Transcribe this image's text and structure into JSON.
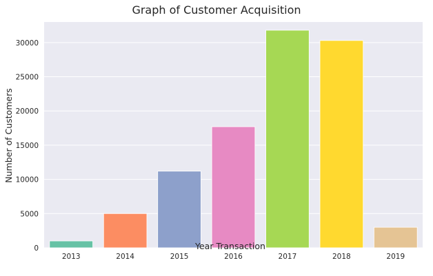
{
  "chart_data": {
    "type": "bar",
    "title": "Graph of Customer Acquisition",
    "xlabel": "Year Transaction",
    "ylabel": "Number of Customers",
    "categories": [
      "2013",
      "2014",
      "2015",
      "2016",
      "2017",
      "2018",
      "2019"
    ],
    "values": [
      1000,
      5000,
      11200,
      17700,
      31800,
      30300,
      3000
    ],
    "ylim": [
      0,
      33000
    ],
    "yticks": [
      0,
      5000,
      10000,
      15000,
      20000,
      25000,
      30000
    ],
    "grid": true,
    "legend": "none",
    "colors": [
      "#66c2a5",
      "#fc8d62",
      "#8da0cb",
      "#e78ac3",
      "#a6d854",
      "#ffd92f",
      "#e5c494"
    ],
    "background_color": "#eaeaf2",
    "grid_color": "#ffffff"
  }
}
